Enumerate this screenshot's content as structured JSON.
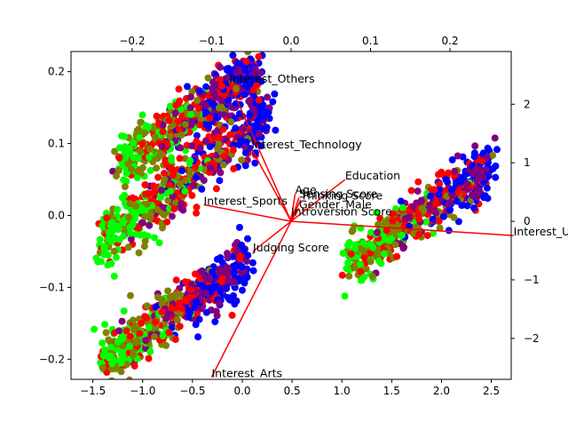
{
  "chart_data": {
    "type": "scatter",
    "title": "",
    "xlabel": "",
    "ylabel": "",
    "grid": false,
    "xlim": [
      -1.72,
      2.7
    ],
    "ylim": [
      -0.228,
      0.228
    ],
    "top_xlim": [
      -0.277,
      0.277
    ],
    "right_ylim": [
      -2.7,
      2.9
    ],
    "x_ticks": [
      -1.5,
      -1.0,
      -0.5,
      0.0,
      0.5,
      1.0,
      1.5,
      2.0,
      2.5
    ],
    "x_tick_labels": [
      "−1.5",
      "−1.0",
      "−0.5",
      "0.0",
      "0.5",
      "1.0",
      "1.5",
      "2.0",
      "2.5"
    ],
    "y_ticks": [
      -0.2,
      -0.1,
      0.0,
      0.1,
      0.2
    ],
    "y_tick_labels": [
      "−0.2",
      "−0.1",
      "0.0",
      "0.1",
      "0.2"
    ],
    "top_ticks": [
      -0.2,
      -0.1,
      0.0,
      0.1,
      0.2
    ],
    "top_tick_labels": [
      "−0.2",
      "−0.1",
      "0.0",
      "0.1",
      "0.2"
    ],
    "right_ticks": [
      -2,
      -1,
      0,
      1,
      2
    ],
    "right_tick_labels": [
      "−2",
      "−1",
      "0",
      "1",
      "2"
    ],
    "point_colors": [
      "#00ff00",
      "#808000",
      "#ff0000",
      "#800080",
      "#0000ff"
    ],
    "clusters": [
      {
        "x_start": -1.22,
        "y_start": 0.07,
        "x_end": 0.15,
        "y_end": 0.2,
        "width": 0.045
      },
      {
        "x_start": -1.42,
        "y_start": -0.04,
        "x_end": 0.27,
        "y_end": 0.14,
        "width": 0.05
      },
      {
        "x_start": -1.4,
        "y_start": -0.205,
        "x_end": 0.05,
        "y_end": -0.065,
        "width": 0.045
      },
      {
        "x_start": 1.05,
        "y_start": -0.068,
        "x_end": 2.52,
        "y_end": 0.07,
        "width": 0.042
      }
    ],
    "loadings": [
      {
        "name": "Interest_Others",
        "x": -0.078,
        "y": 0.185,
        "label": "Interest_Others"
      },
      {
        "name": "Interest_Technology",
        "x": -0.05,
        "y": 0.093,
        "label": "Interest_Technology"
      },
      {
        "name": "Education",
        "x": 0.068,
        "y": 0.05,
        "label": "Education"
      },
      {
        "name": "Age",
        "x": 0.005,
        "y": 0.03,
        "label": "Age"
      },
      {
        "name": "Sensing Score",
        "x": 0.01,
        "y": 0.025,
        "label": "Sensing Score"
      },
      {
        "name": "Thinking Score",
        "x": 0.012,
        "y": 0.022,
        "label": "Thinking Score"
      },
      {
        "name": "Gender_Male",
        "x": 0.01,
        "y": 0.01,
        "label": "Gender_Male"
      },
      {
        "name": "Introversion Score",
        "x": 0.0,
        "y": 0.0,
        "label": "Introversion Score"
      },
      {
        "name": "Interest_Sports",
        "x": -0.11,
        "y": 0.015,
        "label": "Interest_Sports"
      },
      {
        "name": "Judging Score",
        "x": -0.048,
        "y": -0.05,
        "label": "Judging Score"
      },
      {
        "name": "Interest_Arts",
        "x": -0.1,
        "y": -0.225,
        "label": "Interest_Arts"
      },
      {
        "name": "Interest_Unknown",
        "x": 0.28,
        "y": -0.028,
        "label": "Interest_Unknown"
      }
    ]
  }
}
